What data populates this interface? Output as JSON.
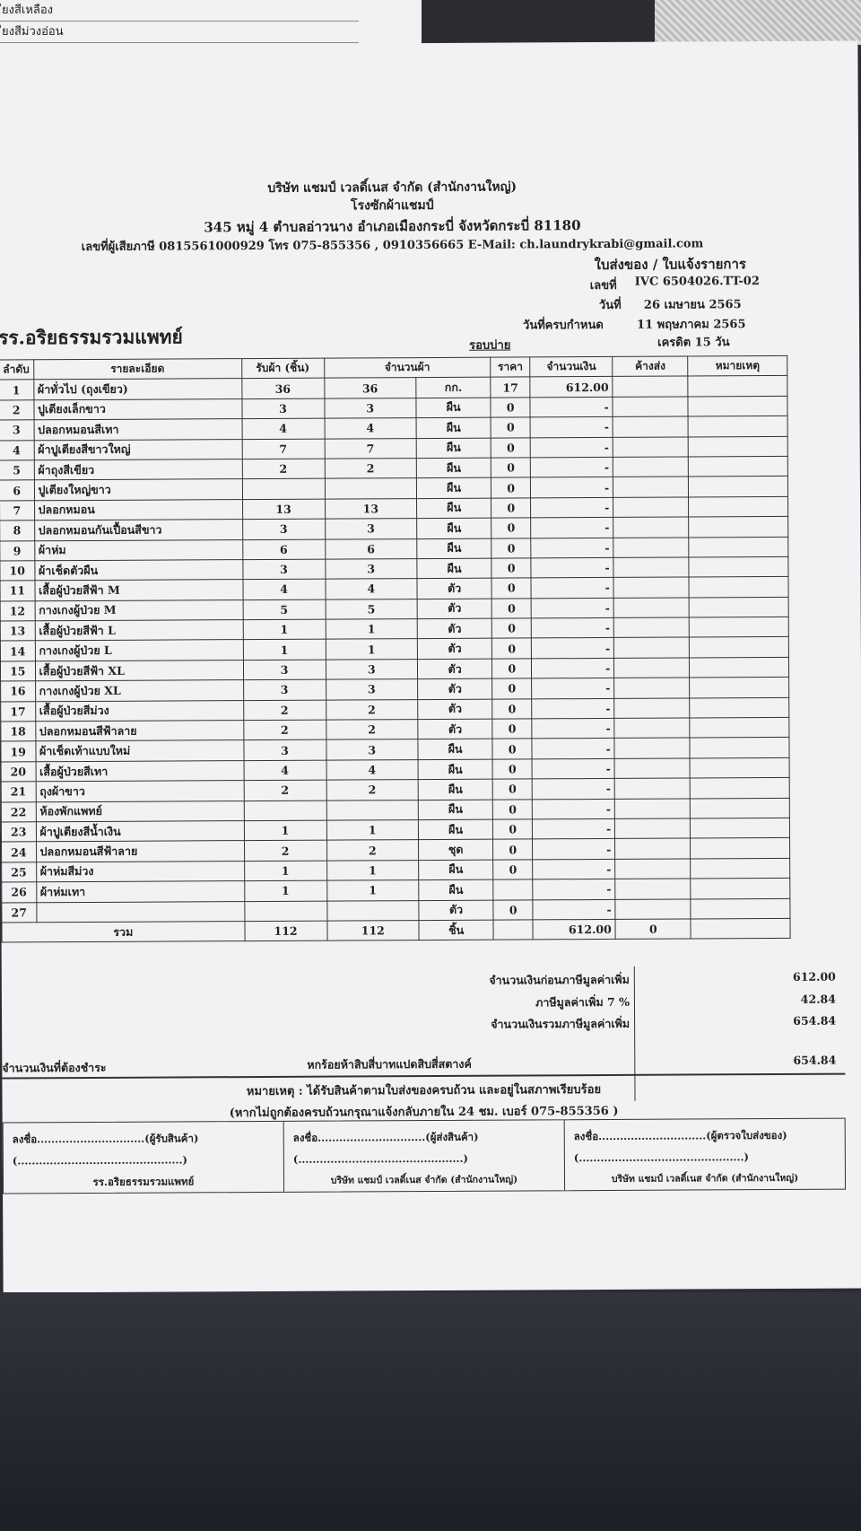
{
  "top_fragment": [
    "ียงสีเหลือง",
    "ียงสีม่วงอ่อน"
  ],
  "company": {
    "name": "บริษัท แชมป์ เวลดิ์เนส จำกัด (สำนักงานใหญ่)",
    "shop": "โรงซักผ้าแชมป์",
    "address": "345 หมู่ 4 ตำบลอ่าวนาง อำเภอเมืองกระบี่ จังหวัดกระบี่ 81180",
    "contact": "เลขที่ผู้เสียภาษี 0815561000929 โทร 075-855356 , 0910356665 E-Mail: ch.laundrykrabi@gmail.com"
  },
  "doc": {
    "title": "ใบส่งของ / ใบแจ้งรายการ",
    "no_label": "เลขที่",
    "no": "IVC 6504026.TT-02",
    "date_label": "วันที่",
    "date": "26 เมษายน 2565",
    "due_label": "วันที่ครบกำหนด",
    "due": "11 พฤษภาคม 2565",
    "round": "รอบบ่าย",
    "credit": "เครดิต 15 วัน"
  },
  "customer": "รร.อริยธรรมรวมแพทย์",
  "columns": [
    "ลำดับ",
    "รายละเอียด",
    "รับผ้า (ชิ้น)",
    "จำนวนผ้า",
    "ราคา",
    "จำนวนเงิน",
    "ค้างส่ง",
    "หมายเหตุ"
  ],
  "rows": [
    [
      "1",
      "ผ้าทั่วไป (ถุงเขียว)",
      "36",
      "36",
      "กก.",
      "17",
      "612.00"
    ],
    [
      "2",
      "ปูเตียงเล็กขาว",
      "3",
      "3",
      "ผืน",
      "0",
      "-"
    ],
    [
      "3",
      "ปลอกหมอนสีเทา",
      "4",
      "4",
      "ผืน",
      "0",
      "-"
    ],
    [
      "4",
      "ผ้าปูเตียงสีขาวใหญ่",
      "7",
      "7",
      "ผืน",
      "0",
      "-"
    ],
    [
      "5",
      "ผ้าถุงสีเขียว",
      "2",
      "2",
      "ผืน",
      "0",
      "-"
    ],
    [
      "6",
      "ปูเตียงใหญ่ขาว",
      "",
      "",
      "ผืน",
      "0",
      "-"
    ],
    [
      "7",
      "ปลอกหมอน",
      "13",
      "13",
      "ผืน",
      "0",
      "-"
    ],
    [
      "8",
      "ปลอกหมอนกันเปื้อนสีขาว",
      "3",
      "3",
      "ผืน",
      "0",
      "-"
    ],
    [
      "9",
      "ผ้าห่ม",
      "6",
      "6",
      "ผืน",
      "0",
      "-"
    ],
    [
      "10",
      "ผ้าเช็ดตัวผืน",
      "3",
      "3",
      "ผืน",
      "0",
      "-"
    ],
    [
      "11",
      "เสื้อผู้ป่วยสีฟ้า M",
      "4",
      "4",
      "ตัว",
      "0",
      "-"
    ],
    [
      "12",
      "กางเกงผู้ป่วย M",
      "5",
      "5",
      "ตัว",
      "0",
      "-"
    ],
    [
      "13",
      "เสื้อผู้ป่วยสีฟ้า L",
      "1",
      "1",
      "ตัว",
      "0",
      "-"
    ],
    [
      "14",
      "กางเกงผู้ป่วย L",
      "1",
      "1",
      "ตัว",
      "0",
      "-"
    ],
    [
      "15",
      "เสื้อผู้ป่วยสีฟ้า XL",
      "3",
      "3",
      "ตัว",
      "0",
      "-"
    ],
    [
      "16",
      "กางเกงผู้ป่วย XL",
      "3",
      "3",
      "ตัว",
      "0",
      "-"
    ],
    [
      "17",
      "เสื้อผู้ป่วยสีม่วง",
      "2",
      "2",
      "ตัว",
      "0",
      "-"
    ],
    [
      "18",
      "ปลอกหมอนสีฟ้าลาย",
      "2",
      "2",
      "ตัว",
      "0",
      "-"
    ],
    [
      "19",
      "ผ้าเช็ดเท้าแบบใหม่",
      "3",
      "3",
      "ผืน",
      "0",
      "-"
    ],
    [
      "20",
      "เสื้อผู้ป่วยสีเทา",
      "4",
      "4",
      "ผืน",
      "0",
      "-"
    ],
    [
      "21",
      "ถุงผ้าขาว",
      "2",
      "2",
      "ผืน",
      "0",
      "-"
    ],
    [
      "22",
      "ห้องพักแพทย์",
      "",
      "",
      "ผืน",
      "0",
      "-"
    ],
    [
      "23",
      "ผ้าปูเตียงสีน้ำเงิน",
      "1",
      "1",
      "ผืน",
      "0",
      "-"
    ],
    [
      "24",
      "ปลอกหมอนสีฟ้าลาย",
      "2",
      "2",
      "ชุด",
      "0",
      "-"
    ],
    [
      "25",
      "ผ้าห่มสีม่วง",
      "1",
      "1",
      "ผืน",
      "0",
      "-"
    ],
    [
      "26",
      "ผ้าห่มเทา",
      "1",
      "1",
      "ผืน",
      "",
      "-"
    ],
    [
      "27",
      "",
      "",
      "",
      "ตัว",
      "0",
      "-"
    ]
  ],
  "total": {
    "label": "รวม",
    "received": "112",
    "qty": "112",
    "unit": "ชิ้น",
    "amount": "612.00",
    "pending": "0"
  },
  "summary": {
    "before_vat_label": "จำนวนเงินก่อนภาษีมูลค่าเพิ่ม",
    "before_vat": "612.00",
    "vat_label": "ภาษีมูลค่าเพิ่ม 7 %",
    "vat": "42.84",
    "with_vat_label": "จำนวนเงินรวมภาษีมูลค่าเพิ่ม",
    "with_vat": "654.84",
    "pay_label": "จำนวนเงินที่ต้องชำระ",
    "pay_words": "หกร้อยห้าสิบสี่บาทแปดสิบสี่สตางค์",
    "pay": "654.84"
  },
  "note": "หมายเหตุ : ได้รับสินค้าตามใบส่งของครบถ้วน และอยู่ในสภาพเรียบร้อย",
  "note2": "(หากไม่ถูกต้องครบถ้วนกรุณาแจ้งกลับภายใน 24 ชม. เบอร์ 075-855356 )",
  "signatures": [
    {
      "line": "ลงชื่อ..............................(ผู้รับสินค้า)",
      "paren": "(..............................................)",
      "org": "รร.อริยธรรมรวมแพทย์"
    },
    {
      "line": "ลงชื่อ..............................(ผู้ส่งสินค้า)",
      "paren": "(..............................................)",
      "org": "บริษัท แชมป์ เวลดิ์เนส จำกัด (สำนักงานใหญ่)"
    },
    {
      "line": "ลงชื่อ..............................(ผู้ตรวจใบส่งของ)",
      "paren": "(..............................................)",
      "org": "บริษัท แชมป์ เวลดิ์เนส จำกัด (สำนักงานใหญ่)"
    }
  ]
}
